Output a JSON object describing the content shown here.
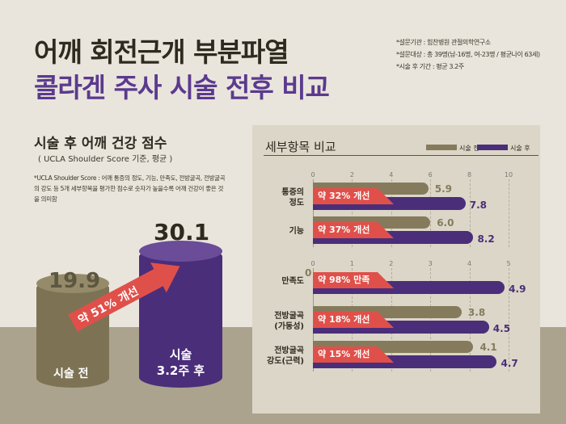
{
  "header": {
    "title1": "어깨 회전근개 부분파열",
    "title2": "콜라겐 주사 시술 전후 비교",
    "notes": [
      "*설문기관 : 힘찬병원 관절의학연구소",
      "*설문대상 : 총 39명(남-16명, 여-23명 / 평균나이 63세)",
      "*시술 후 기간 : 평균 3.2주"
    ]
  },
  "left": {
    "title": "시술 후 어깨 건강 점수",
    "subtitle": "( UCLA Shoulder Score 기준, 평균 )",
    "desc": "*UCLA Shoulder Score : 어깨 통증의 정도, 기능, 만족도, 전방굴곡, 전방굴곡의 강도 등 5개 세부항목을 평가한 점수로 숫자가 높을수록 어깨 건강이 좋은 것을 의미함",
    "before_value": "19.9",
    "before_label": "시술 전",
    "after_value": "30.1",
    "after_label1": "시술",
    "after_label2": "3.2주 후",
    "arrow_label": "약 51% 개선"
  },
  "colors": {
    "before": "#857b5c",
    "after": "#4b2e7a",
    "badge": "#e0504a",
    "title2": "#5b3a8e"
  },
  "chart_data": [
    {
      "type": "bar",
      "title": "세부항목 비교",
      "legend": [
        "시술 전",
        "시술 후"
      ],
      "xlim": [
        0,
        10
      ],
      "ticks": [
        "0",
        "2",
        "4",
        "6",
        "8",
        "10"
      ],
      "categories": [
        "통증의\n정도",
        "기능"
      ],
      "series": [
        {
          "name": "시술 전",
          "values": [
            5.9,
            6.0
          ],
          "labels": [
            "5.9",
            "6.0"
          ]
        },
        {
          "name": "시술 후",
          "values": [
            7.8,
            8.2
          ],
          "labels": [
            "7.8",
            "8.2"
          ]
        }
      ],
      "annotations": [
        "약 32% 개선",
        "약 37% 개선"
      ]
    },
    {
      "type": "bar",
      "xlim": [
        0,
        5
      ],
      "ticks": [
        "0",
        "1",
        "2",
        "3",
        "4",
        "5"
      ],
      "categories": [
        "만족도",
        "전방굴곡\n(가동성)",
        "전방굴곡\n강도(근력)"
      ],
      "series": [
        {
          "name": "시술 전",
          "values": [
            0,
            3.8,
            4.1
          ],
          "labels": [
            "0",
            "3.8",
            "4.1"
          ]
        },
        {
          "name": "시술 후",
          "values": [
            4.9,
            4.5,
            4.7
          ],
          "labels": [
            "4.9",
            "4.5",
            "4.7"
          ]
        }
      ],
      "annotations": [
        "약 98% 만족",
        "약 18% 개선",
        "약 15% 개선"
      ]
    }
  ]
}
